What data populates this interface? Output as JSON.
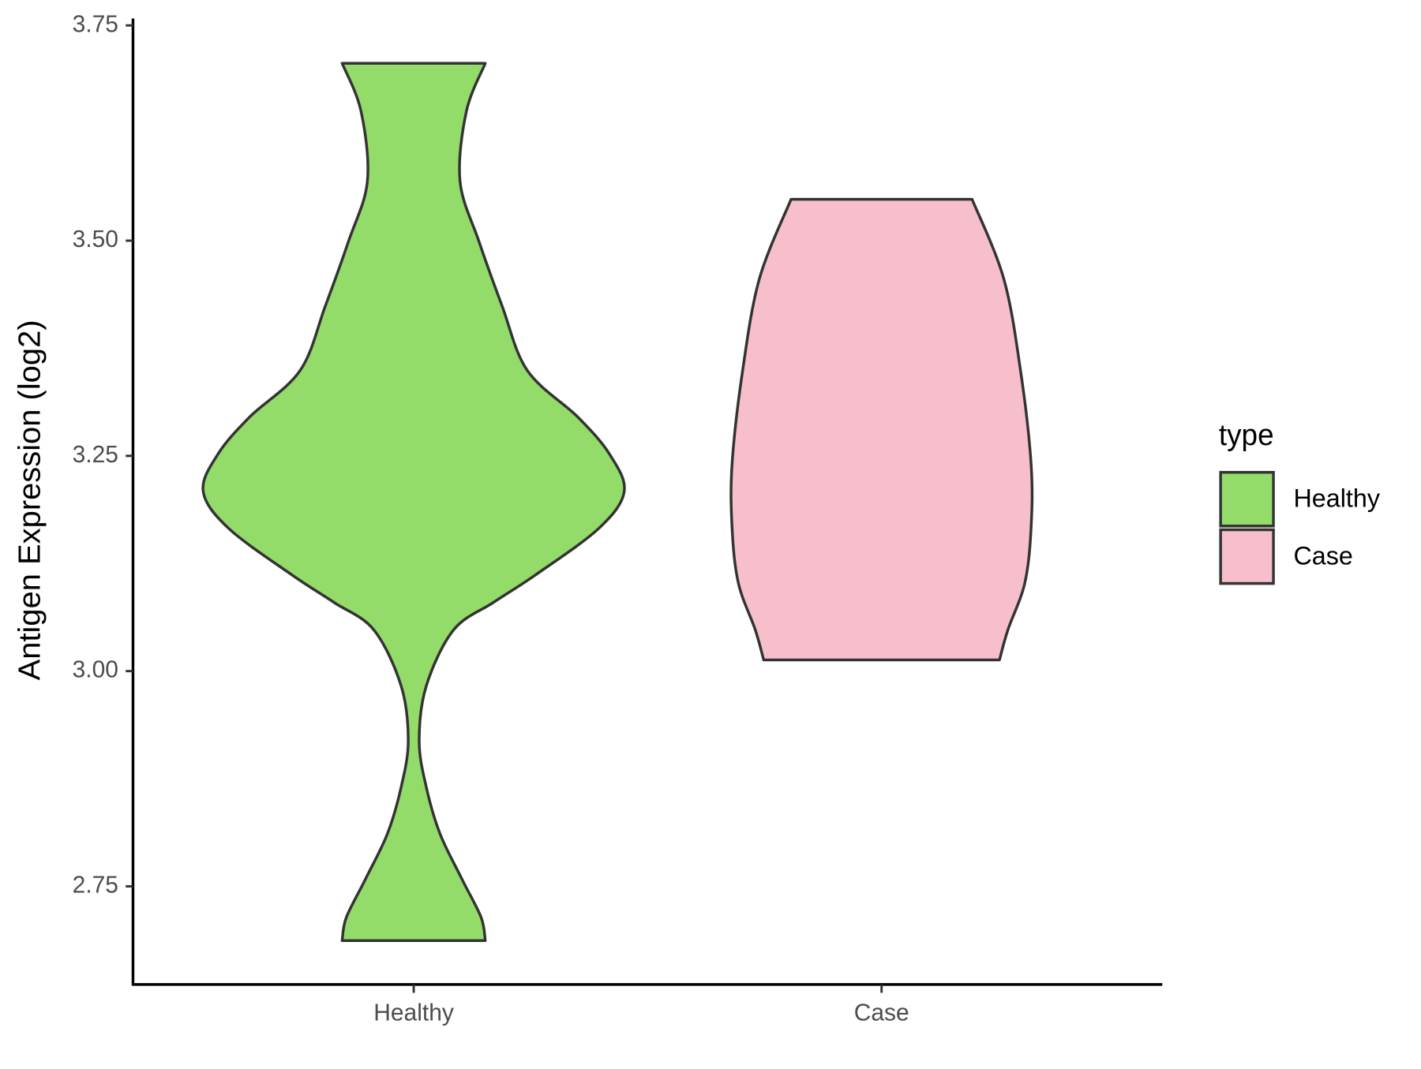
{
  "chart_data": {
    "type": "violin",
    "y_label": "Antigen Expression (log2)",
    "categories": [
      "Healthy",
      "Case"
    ],
    "xlim": [
      0.4,
      2.6
    ],
    "ylim": [
      2.636,
      3.758
    ],
    "yticks": [
      {
        "value": 2.75,
        "label": "2.75"
      },
      {
        "value": 3.0,
        "label": "3.00"
      },
      {
        "value": 3.25,
        "label": "3.25"
      },
      {
        "value": 3.5,
        "label": "3.50"
      },
      {
        "value": 3.75,
        "label": "3.75"
      }
    ],
    "grid": false,
    "legend_title": "type",
    "legend": "right",
    "series": [
      {
        "name": "Healthy",
        "color": "#93dc6a",
        "y": [
          3.706,
          3.65,
          3.569,
          3.499,
          3.424,
          3.349,
          3.295,
          3.252,
          3.209,
          3.166,
          3.112,
          3.08,
          3.048,
          2.983,
          2.919,
          2.865,
          2.811,
          2.758,
          2.714,
          2.687
        ],
        "width": [
          0.34,
          0.25,
          0.22,
          0.31,
          0.42,
          0.54,
          0.78,
          0.93,
          1.0,
          0.88,
          0.58,
          0.38,
          0.19,
          0.06,
          0.026,
          0.06,
          0.125,
          0.23,
          0.32,
          0.34
        ]
      },
      {
        "name": "Case",
        "color": "#f7bfcb",
        "y": [
          3.548,
          3.456,
          3.349,
          3.241,
          3.166,
          3.102,
          3.048,
          3.013
        ],
        "width": [
          0.43,
          0.58,
          0.66,
          0.71,
          0.71,
          0.68,
          0.6,
          0.56
        ]
      }
    ]
  }
}
